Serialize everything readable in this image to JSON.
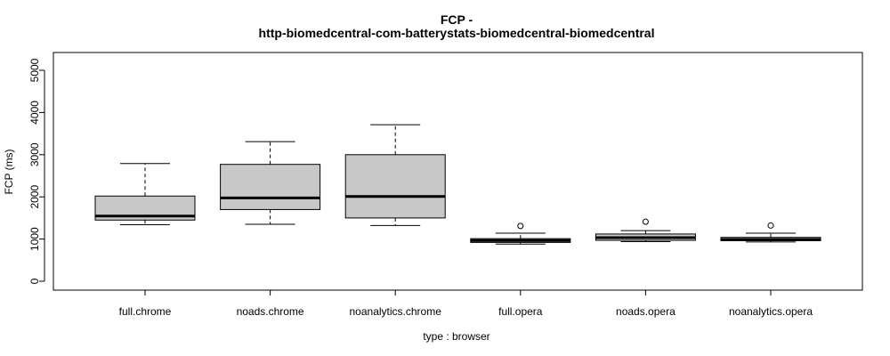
{
  "chart_data": {
    "type": "boxplot",
    "title_line1": "FCP -",
    "title_line2": "http-biomedcentral-com-batterystats-biomedcentral-biomedcentral",
    "xlabel": "type : browser",
    "ylabel": "FCP (ms)",
    "ylim": [
      0,
      5000
    ],
    "yticks": [
      0,
      1000,
      2000,
      3000,
      4000,
      5000
    ],
    "grid": false,
    "box_fill": "#c8c8c8",
    "categories": [
      "full.chrome",
      "noads.chrome",
      "noanalytics.chrome",
      "full.opera",
      "noads.opera",
      "noanalytics.opera"
    ],
    "boxes": [
      {
        "whisker_low": 1340,
        "q1": 1450,
        "median": 1545,
        "q3": 2020,
        "whisker_high": 2790,
        "outliers": []
      },
      {
        "whisker_low": 1350,
        "q1": 1700,
        "median": 1975,
        "q3": 2770,
        "whisker_high": 3310,
        "outliers": []
      },
      {
        "whisker_low": 1320,
        "q1": 1500,
        "median": 2010,
        "q3": 3000,
        "whisker_high": 3710,
        "outliers": []
      },
      {
        "whisker_low": 880,
        "q1": 920,
        "median": 965,
        "q3": 1010,
        "whisker_high": 1140,
        "outliers": [
          1310
        ]
      },
      {
        "whisker_low": 940,
        "q1": 970,
        "median": 1035,
        "q3": 1120,
        "whisker_high": 1200,
        "outliers": [
          1410
        ]
      },
      {
        "whisker_low": 930,
        "q1": 960,
        "median": 990,
        "q3": 1040,
        "whisker_high": 1140,
        "outliers": [
          1320
        ]
      }
    ]
  }
}
